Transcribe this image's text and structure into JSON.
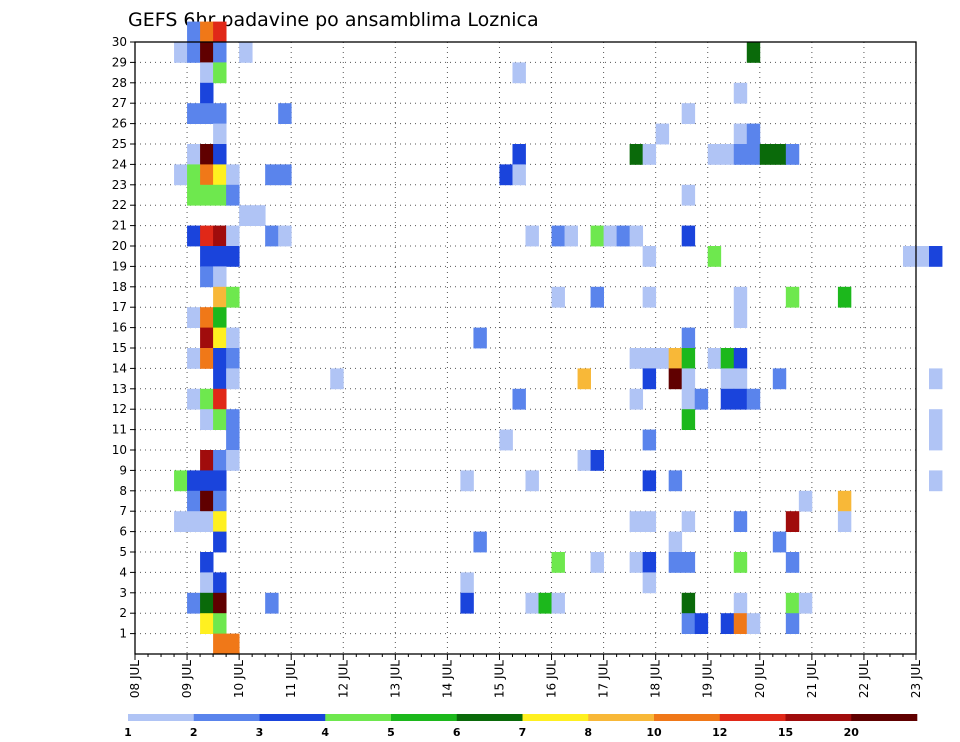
{
  "chart_data": {
    "type": "heatmap",
    "title": "GEFS 6hr padavine po ansamblima Loznica",
    "xlabel": "",
    "ylabel": "",
    "x_tick_labels": [
      "08 JUL",
      "09 JUL",
      "10 JUL",
      "11 JUL",
      "12 JUL",
      "13 JUL",
      "14 JUL",
      "15 JUL",
      "16 JUL",
      "17 JUL",
      "18 JUL",
      "19 JUL",
      "20 JUL",
      "21 JUL",
      "22 JUL",
      "23 JUL"
    ],
    "y_tick_labels": [
      "1",
      "2",
      "3",
      "4",
      "5",
      "6",
      "7",
      "8",
      "9",
      "10",
      "11",
      "12",
      "13",
      "14",
      "15",
      "16",
      "17",
      "18",
      "19",
      "20",
      "21",
      "22",
      "23",
      "24",
      "25",
      "26",
      "27",
      "28",
      "29",
      "30"
    ],
    "x_range": [
      "08 JUL 00Z",
      "23 JUL 00Z"
    ],
    "y_range": [
      0,
      30
    ],
    "grid": true,
    "time_step_hours": 6,
    "colorbar": {
      "placement": "bottom",
      "labels": [
        "1",
        "2",
        "3",
        "4",
        "5",
        "6",
        "7",
        "8",
        "10",
        "12",
        "15",
        "20"
      ],
      "colors": [
        "#b0c4f5",
        "#5a84ec",
        "#1a44dc",
        "#6ee84e",
        "#1cb81c",
        "#0a6a0a",
        "#fff020",
        "#f8b838",
        "#f07818",
        "#e02818",
        "#a00c0c",
        "#600000"
      ]
    },
    "cells": [
      [
        30,
        4,
        2
      ],
      [
        30,
        5,
        9
      ],
      [
        30,
        6,
        10
      ],
      [
        29,
        3,
        1
      ],
      [
        29,
        4,
        2
      ],
      [
        29,
        5,
        12
      ],
      [
        29,
        6,
        2
      ],
      [
        29,
        8,
        1
      ],
      [
        29,
        47,
        6
      ],
      [
        28,
        5,
        1
      ],
      [
        28,
        6,
        4
      ],
      [
        28,
        29,
        1
      ],
      [
        27,
        5,
        3
      ],
      [
        27,
        46,
        1
      ],
      [
        26,
        4,
        2
      ],
      [
        26,
        5,
        2
      ],
      [
        26,
        6,
        2
      ],
      [
        26,
        11,
        2
      ],
      [
        26,
        42,
        1
      ],
      [
        25,
        6,
        1
      ],
      [
        25,
        40,
        1
      ],
      [
        25,
        46,
        1
      ],
      [
        25,
        47,
        2
      ],
      [
        24,
        4,
        1
      ],
      [
        24,
        5,
        12
      ],
      [
        24,
        6,
        3
      ],
      [
        24,
        29,
        3
      ],
      [
        24,
        38,
        6
      ],
      [
        24,
        39,
        1
      ],
      [
        24,
        44,
        1
      ],
      [
        24,
        45,
        1
      ],
      [
        24,
        46,
        2
      ],
      [
        24,
        47,
        2
      ],
      [
        24,
        48,
        6
      ],
      [
        24,
        49,
        6
      ],
      [
        24,
        50,
        2
      ],
      [
        23,
        3,
        1
      ],
      [
        23,
        4,
        4
      ],
      [
        23,
        5,
        9
      ],
      [
        23,
        6,
        7
      ],
      [
        23,
        7,
        1
      ],
      [
        23,
        10,
        2
      ],
      [
        23,
        11,
        2
      ],
      [
        23,
        28,
        3
      ],
      [
        23,
        29,
        1
      ],
      [
        22,
        4,
        4
      ],
      [
        22,
        5,
        4
      ],
      [
        22,
        6,
        4
      ],
      [
        22,
        7,
        2
      ],
      [
        22,
        42,
        1
      ],
      [
        21,
        8,
        1
      ],
      [
        21,
        9,
        1
      ],
      [
        20,
        4,
        3
      ],
      [
        20,
        5,
        10
      ],
      [
        20,
        6,
        11
      ],
      [
        20,
        7,
        1
      ],
      [
        20,
        10,
        2
      ],
      [
        20,
        11,
        1
      ],
      [
        20,
        30,
        1
      ],
      [
        20,
        32,
        2
      ],
      [
        20,
        33,
        1
      ],
      [
        20,
        35,
        4
      ],
      [
        20,
        36,
        1
      ],
      [
        20,
        37,
        2
      ],
      [
        20,
        38,
        1
      ],
      [
        20,
        42,
        3
      ],
      [
        19,
        5,
        3
      ],
      [
        19,
        6,
        3
      ],
      [
        19,
        7,
        3
      ],
      [
        19,
        39,
        1
      ],
      [
        19,
        44,
        4
      ],
      [
        19,
        59,
        1
      ],
      [
        19,
        60,
        1
      ],
      [
        19,
        61,
        3
      ],
      [
        18,
        5,
        2
      ],
      [
        18,
        6,
        1
      ],
      [
        17,
        6,
        8
      ],
      [
        17,
        7,
        4
      ],
      [
        17,
        32,
        1
      ],
      [
        17,
        35,
        2
      ],
      [
        17,
        39,
        1
      ],
      [
        17,
        46,
        1
      ],
      [
        17,
        50,
        4
      ],
      [
        17,
        54,
        5
      ],
      [
        16,
        4,
        1
      ],
      [
        16,
        5,
        9
      ],
      [
        16,
        6,
        5
      ],
      [
        16,
        46,
        1
      ],
      [
        15,
        5,
        11
      ],
      [
        15,
        6,
        7
      ],
      [
        15,
        7,
        1
      ],
      [
        15,
        26,
        2
      ],
      [
        15,
        42,
        2
      ],
      [
        14,
        4,
        1
      ],
      [
        14,
        5,
        9
      ],
      [
        14,
        6,
        3
      ],
      [
        14,
        7,
        2
      ],
      [
        14,
        38,
        1
      ],
      [
        14,
        39,
        1
      ],
      [
        14,
        40,
        1
      ],
      [
        14,
        41,
        8
      ],
      [
        14,
        42,
        5
      ],
      [
        14,
        44,
        1
      ],
      [
        14,
        45,
        5
      ],
      [
        14,
        46,
        3
      ],
      [
        13,
        6,
        3
      ],
      [
        13,
        7,
        1
      ],
      [
        13,
        15,
        1
      ],
      [
        13,
        34,
        8
      ],
      [
        13,
        39,
        3
      ],
      [
        13,
        41,
        12
      ],
      [
        13,
        42,
        1
      ],
      [
        13,
        45,
        1
      ],
      [
        13,
        46,
        1
      ],
      [
        13,
        49,
        2
      ],
      [
        13,
        61,
        1
      ],
      [
        12,
        4,
        1
      ],
      [
        12,
        5,
        4
      ],
      [
        12,
        6,
        10
      ],
      [
        12,
        29,
        2
      ],
      [
        12,
        38,
        1
      ],
      [
        12,
        42,
        1
      ],
      [
        12,
        43,
        2
      ],
      [
        12,
        45,
        3
      ],
      [
        12,
        46,
        3
      ],
      [
        12,
        47,
        2
      ],
      [
        11,
        5,
        1
      ],
      [
        11,
        6,
        4
      ],
      [
        11,
        7,
        2
      ],
      [
        11,
        42,
        5
      ],
      [
        11,
        61,
        1
      ],
      [
        10,
        7,
        2
      ],
      [
        10,
        28,
        1
      ],
      [
        10,
        39,
        2
      ],
      [
        10,
        61,
        1
      ],
      [
        9,
        5,
        11
      ],
      [
        9,
        6,
        2
      ],
      [
        9,
        7,
        1
      ],
      [
        9,
        34,
        1
      ],
      [
        9,
        35,
        3
      ],
      [
        8,
        3,
        4
      ],
      [
        8,
        4,
        3
      ],
      [
        8,
        5,
        3
      ],
      [
        8,
        6,
        3
      ],
      [
        8,
        25,
        1
      ],
      [
        8,
        30,
        1
      ],
      [
        8,
        39,
        3
      ],
      [
        8,
        41,
        2
      ],
      [
        8,
        61,
        1
      ],
      [
        7,
        4,
        2
      ],
      [
        7,
        5,
        12
      ],
      [
        7,
        6,
        2
      ],
      [
        7,
        51,
        1
      ],
      [
        7,
        54,
        8
      ],
      [
        6,
        3,
        1
      ],
      [
        6,
        4,
        1
      ],
      [
        6,
        5,
        1
      ],
      [
        6,
        6,
        7
      ],
      [
        6,
        38,
        1
      ],
      [
        6,
        39,
        1
      ],
      [
        6,
        42,
        1
      ],
      [
        6,
        46,
        2
      ],
      [
        6,
        50,
        11
      ],
      [
        6,
        54,
        1
      ],
      [
        5,
        6,
        3
      ],
      [
        5,
        26,
        2
      ],
      [
        5,
        41,
        1
      ],
      [
        5,
        49,
        2
      ],
      [
        4,
        5,
        3
      ],
      [
        4,
        32,
        4
      ],
      [
        4,
        35,
        1
      ],
      [
        4,
        38,
        1
      ],
      [
        4,
        39,
        3
      ],
      [
        4,
        41,
        2
      ],
      [
        4,
        42,
        2
      ],
      [
        4,
        46,
        4
      ],
      [
        4,
        50,
        2
      ],
      [
        3,
        5,
        1
      ],
      [
        3,
        6,
        3
      ],
      [
        3,
        25,
        1
      ],
      [
        3,
        39,
        1
      ],
      [
        2,
        4,
        2
      ],
      [
        2,
        5,
        6
      ],
      [
        2,
        6,
        12
      ],
      [
        2,
        10,
        2
      ],
      [
        2,
        25,
        3
      ],
      [
        2,
        30,
        1
      ],
      [
        2,
        31,
        5
      ],
      [
        2,
        32,
        1
      ],
      [
        2,
        42,
        6
      ],
      [
        2,
        46,
        1
      ],
      [
        2,
        50,
        4
      ],
      [
        2,
        51,
        1
      ],
      [
        1,
        5,
        7
      ],
      [
        1,
        6,
        4
      ],
      [
        1,
        42,
        2
      ],
      [
        1,
        43,
        3
      ],
      [
        1,
        45,
        3
      ],
      [
        1,
        46,
        9
      ],
      [
        1,
        47,
        1
      ],
      [
        1,
        50,
        2
      ],
      [
        0,
        6,
        9
      ],
      [
        0,
        7,
        9
      ]
    ]
  }
}
